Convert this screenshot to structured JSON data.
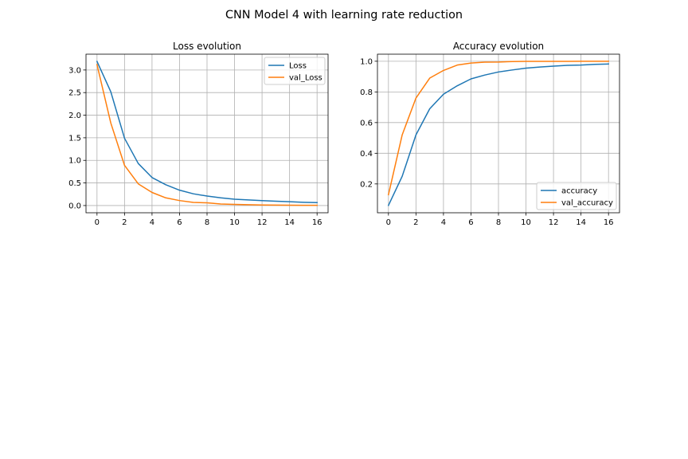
{
  "figure": {
    "title": "CNN Model 4 with learning rate reduction"
  },
  "chart_data": [
    {
      "type": "line",
      "title": "Loss evolution",
      "xlabel": "",
      "ylabel": "",
      "x": [
        0,
        1,
        2,
        3,
        4,
        5,
        6,
        7,
        8,
        9,
        10,
        11,
        12,
        13,
        14,
        15,
        16
      ],
      "xlim": [
        -0.8,
        16.8
      ],
      "ylim": [
        -0.16,
        3.35
      ],
      "xticks": [
        "0",
        "2",
        "4",
        "6",
        "8",
        "10",
        "12",
        "14",
        "16"
      ],
      "yticks": [
        "0.0",
        "0.5",
        "1.0",
        "1.5",
        "2.0",
        "2.5",
        "3.0"
      ],
      "grid": true,
      "legend_position": "upper right",
      "series": [
        {
          "name": "Loss",
          "color": "#1f77b4",
          "values": [
            3.19,
            2.52,
            1.49,
            0.93,
            0.62,
            0.46,
            0.34,
            0.26,
            0.21,
            0.17,
            0.14,
            0.125,
            0.11,
            0.095,
            0.085,
            0.072,
            0.065
          ]
        },
        {
          "name": "val_Loss",
          "color": "#ff7f0e",
          "values": [
            3.12,
            1.83,
            0.89,
            0.48,
            0.29,
            0.17,
            0.11,
            0.07,
            0.06,
            0.035,
            0.025,
            0.018,
            0.013,
            0.01,
            0.008,
            0.006,
            0.005
          ]
        }
      ]
    },
    {
      "type": "line",
      "title": "Accuracy evolution",
      "xlabel": "",
      "ylabel": "",
      "x": [
        0,
        1,
        2,
        3,
        4,
        5,
        6,
        7,
        8,
        9,
        10,
        11,
        12,
        13,
        14,
        15,
        16
      ],
      "xlim": [
        -0.8,
        16.8
      ],
      "ylim": [
        0.012,
        1.046
      ],
      "xticks": [
        "0",
        "2",
        "4",
        "6",
        "8",
        "10",
        "12",
        "14",
        "16"
      ],
      "yticks": [
        "0.2",
        "0.4",
        "0.6",
        "0.8",
        "1.0"
      ],
      "grid": true,
      "legend_position": "lower right",
      "series": [
        {
          "name": "accuracy",
          "color": "#1f77b4",
          "values": [
            0.06,
            0.25,
            0.52,
            0.69,
            0.785,
            0.84,
            0.885,
            0.91,
            0.93,
            0.943,
            0.955,
            0.962,
            0.968,
            0.973,
            0.975,
            0.98,
            0.982
          ]
        },
        {
          "name": "val_accuracy",
          "color": "#ff7f0e",
          "values": [
            0.13,
            0.52,
            0.76,
            0.89,
            0.94,
            0.975,
            0.988,
            0.994,
            0.995,
            0.998,
            0.999,
            0.999,
            0.999,
            0.9995,
            0.9996,
            0.9997,
            0.9998
          ]
        }
      ]
    }
  ]
}
